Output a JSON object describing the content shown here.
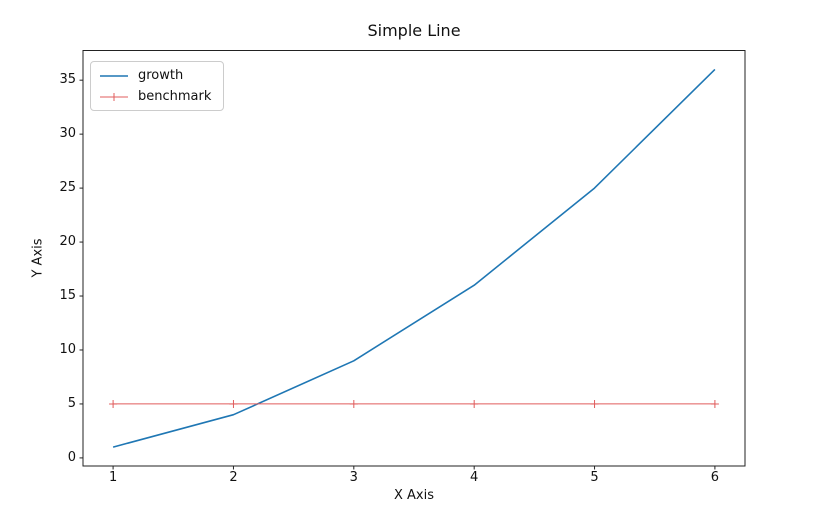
{
  "figure": {
    "background": "#ffffff"
  },
  "chart_data": {
    "type": "line",
    "title": "Simple Line",
    "xlabel": "X Axis",
    "ylabel": "Y Axis",
    "x": [
      1,
      2,
      3,
      4,
      5,
      6
    ],
    "series": [
      {
        "name": "growth",
        "values": [
          1,
          4,
          9,
          16,
          25,
          36
        ],
        "color": "#1f77b4",
        "linewidth": 1.6,
        "marker": "none"
      },
      {
        "name": "benchmark",
        "values": [
          5,
          5,
          5,
          5,
          5,
          5
        ],
        "color": "#e05c5c",
        "linewidth": 1,
        "marker": "plus"
      }
    ],
    "xticks": [
      1,
      2,
      3,
      4,
      5,
      6
    ],
    "yticks": [
      0,
      5,
      10,
      15,
      20,
      25,
      30,
      35
    ],
    "xlim": [
      0.75,
      6.25
    ],
    "ylim": [
      -0.75,
      37.75
    ],
    "grid": false,
    "legend": {
      "position": "upper-left",
      "entries": [
        "growth",
        "benchmark"
      ]
    },
    "axis_color": "#222222",
    "text_color": "#111111"
  }
}
